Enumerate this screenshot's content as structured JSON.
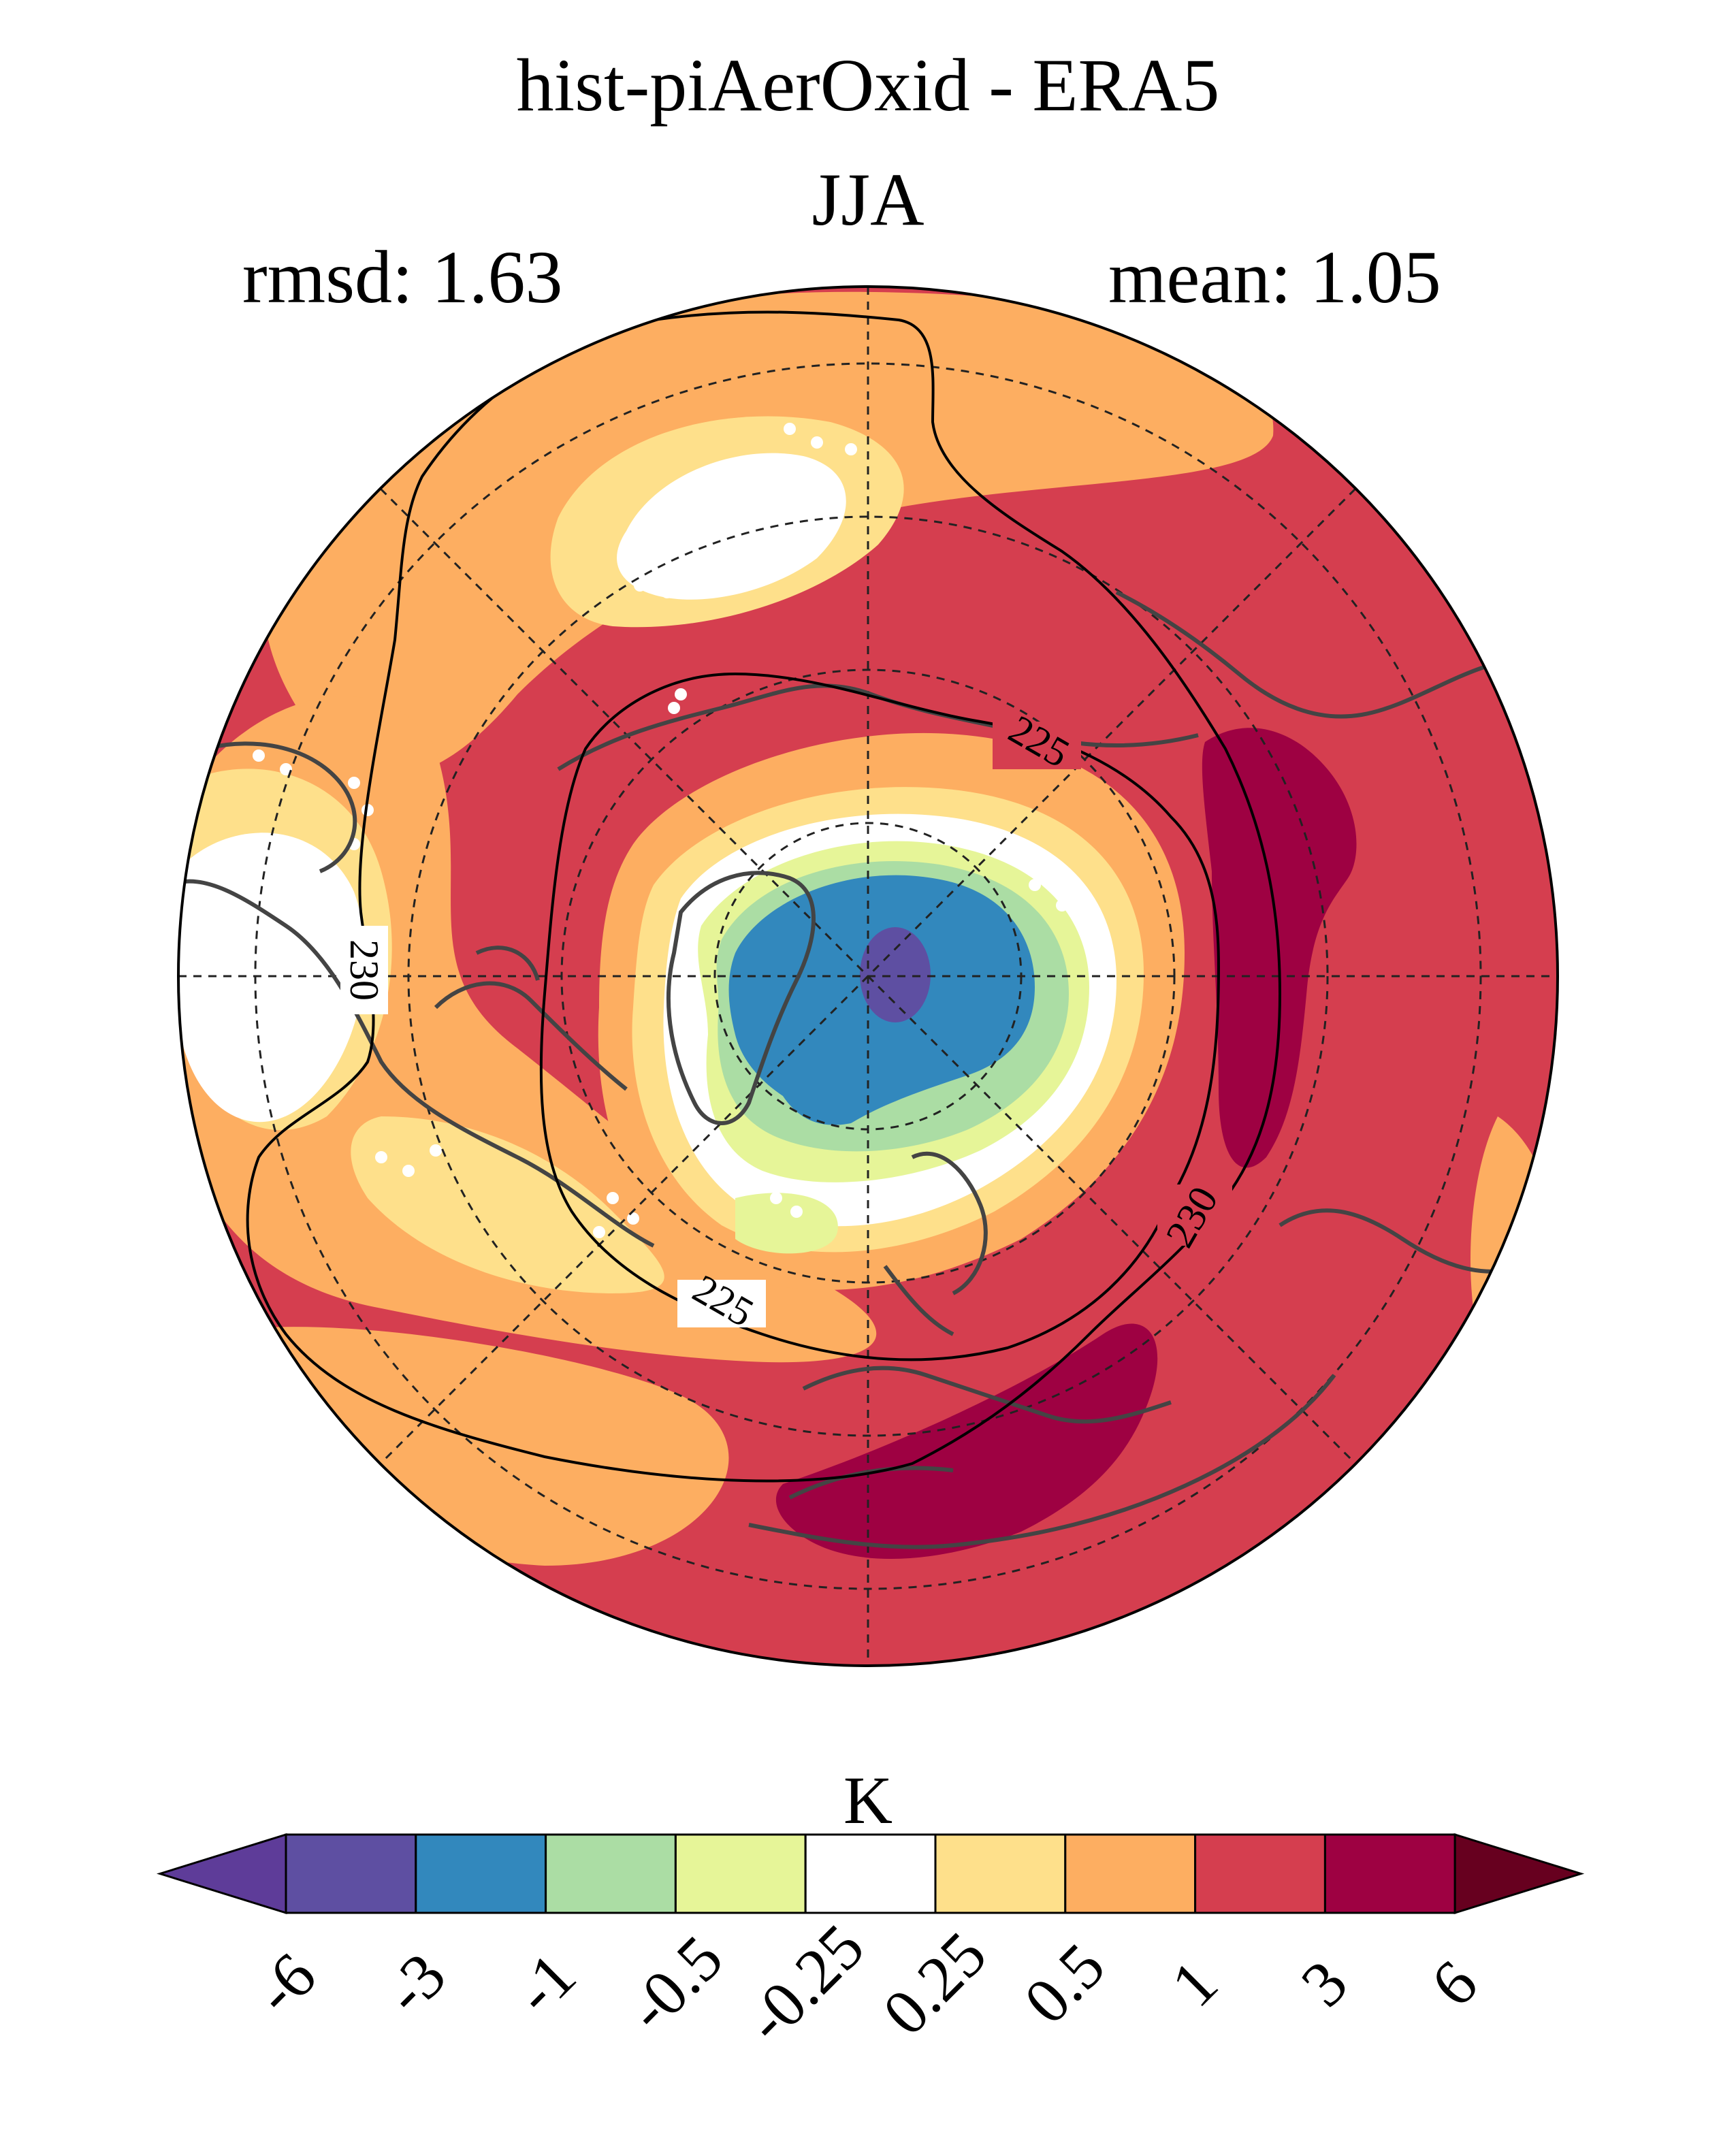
{
  "title": "hist-piAerOxid - ERA5",
  "season": "JJA",
  "stats": {
    "rmsd": "rmsd: 1.63",
    "mean": "mean: 1.05"
  },
  "colorbar": {
    "unit": "K",
    "levels": [
      "-6",
      "-3",
      "-1",
      "-0.5",
      "-0.25",
      "0.25",
      "0.5",
      "1",
      "3",
      "6"
    ],
    "colors": [
      "#5e3c99",
      "#5e4fa2",
      "#3288bd",
      "#abdda4",
      "#e6f598",
      "#ffffff",
      "#fee08b",
      "#fdae61",
      "#d53e4f",
      "#9e0142",
      "#67001f"
    ]
  },
  "contours": [
    {
      "label": "225"
    },
    {
      "label": "230"
    }
  ],
  "map": {
    "projection": "north-polar-stereographic",
    "colors": {
      "background": "#d53e4f",
      "orange": "#fdae61",
      "yellow": "#fee08b",
      "white": "#ffffff",
      "lightgreen": "#e6f598",
      "green": "#abdda4",
      "blue": "#3288bd",
      "purple": "#5e4fa2",
      "darkred": "#9e0142",
      "coast": "#444444"
    }
  }
}
